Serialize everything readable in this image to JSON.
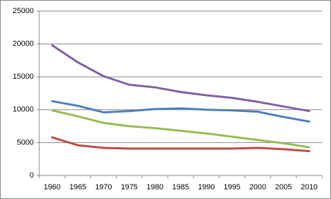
{
  "chart_data": {
    "type": "line",
    "categories": [
      "1960",
      "1965",
      "1970",
      "1975",
      "1980",
      "1985",
      "1990",
      "1995",
      "2000",
      "2005",
      "2010"
    ],
    "series": [
      {
        "color": "#4a7ebb",
        "values": [
          11300,
          10600,
          9600,
          9800,
          10100,
          10200,
          10000,
          9900,
          9700,
          8900,
          8200
        ]
      },
      {
        "color": "#be4b48",
        "values": [
          5800,
          4600,
          4200,
          4100,
          4100,
          4100,
          4100,
          4100,
          4200,
          4000,
          3700
        ]
      },
      {
        "color": "#98b954",
        "values": [
          9900,
          9000,
          8000,
          7500,
          7200,
          6800,
          6400,
          5900,
          5400,
          4900,
          4300
        ]
      },
      {
        "color": "#7d60a0",
        "values": [
          19800,
          17200,
          15100,
          13800,
          13400,
          12700,
          12200,
          11800,
          11200,
          10500,
          9800
        ]
      }
    ],
    "ylim": [
      0,
      25000
    ],
    "yticks": [
      0,
      5000,
      10000,
      15000,
      20000,
      25000
    ],
    "grid": true
  }
}
